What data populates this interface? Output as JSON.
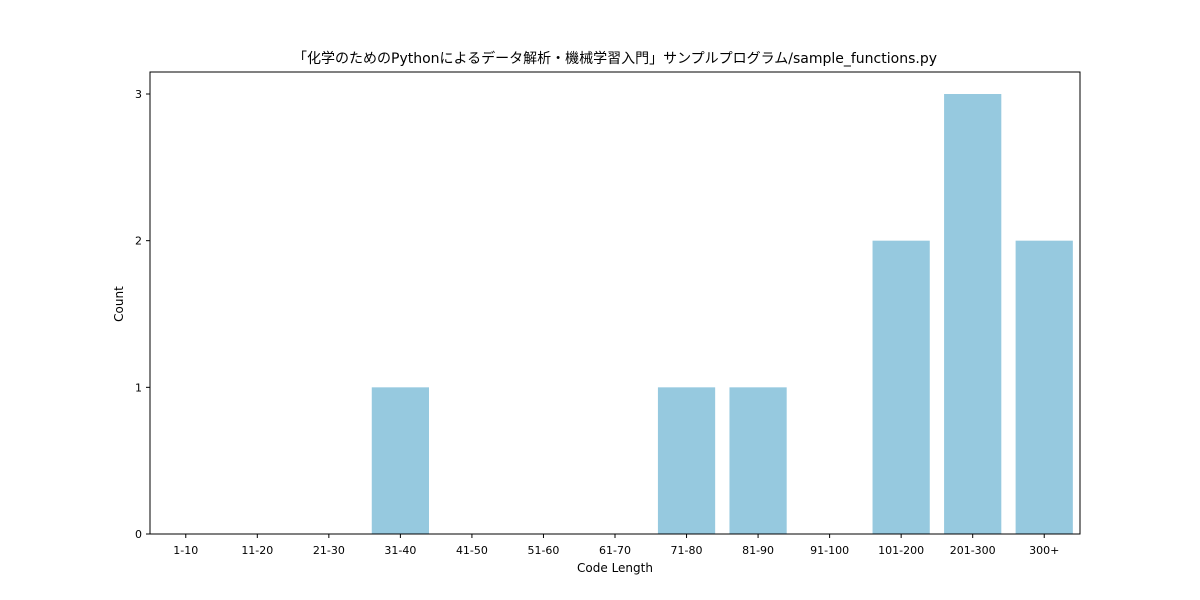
{
  "chart_data": {
    "type": "bar",
    "title": "「化学のためのPythonによるデータ解析・機械学習入門」サンプルプログラム/sample_functions.py",
    "xlabel": "Code Length",
    "ylabel": "Count",
    "categories": [
      "1-10",
      "11-20",
      "21-30",
      "31-40",
      "41-50",
      "51-60",
      "61-70",
      "71-80",
      "81-90",
      "91-100",
      "101-200",
      "201-300",
      "300+"
    ],
    "values": [
      0,
      0,
      0,
      1,
      0,
      0,
      0,
      1,
      1,
      0,
      2,
      3,
      2
    ],
    "yticks": [
      0,
      1,
      2,
      3
    ],
    "ylim": [
      0,
      3.15
    ],
    "grid": false,
    "colors": {
      "bar": "#96c9df",
      "axis": "#000000"
    }
  }
}
